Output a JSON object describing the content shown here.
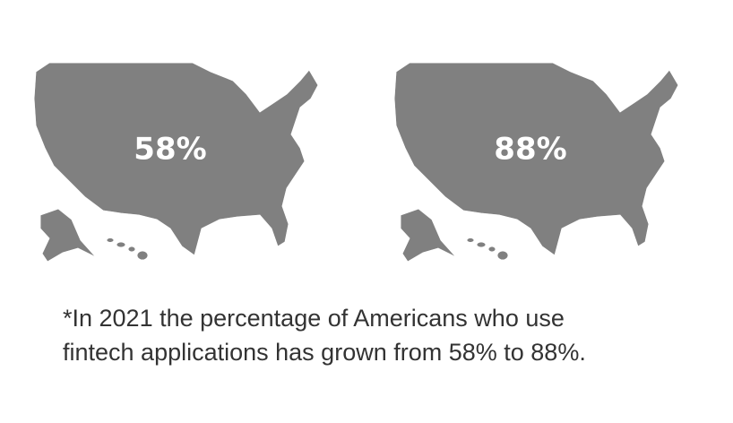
{
  "chart_data": {
    "type": "map-fill",
    "values": [
      58,
      88
    ],
    "value_labels": [
      "58%",
      "88%"
    ],
    "ylim": [
      0,
      100
    ],
    "fill_color": "#f7911e",
    "empty_color": "#808080",
    "caption": [
      "*In 2021 the percentage of Americans who use",
      "fintech applications has grown from 58% to 88%."
    ]
  }
}
